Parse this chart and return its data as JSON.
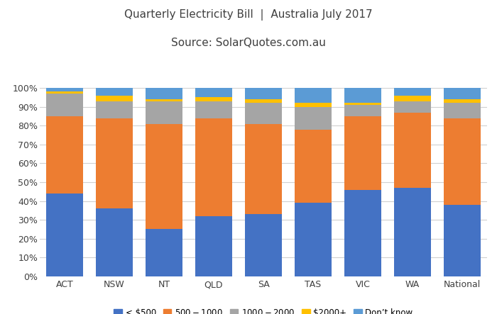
{
  "categories": [
    "ACT",
    "NSW",
    "NT",
    "QLD",
    "SA",
    "TAS",
    "VIC",
    "WA",
    "National"
  ],
  "series": {
    "lt500": [
      44,
      36,
      25,
      32,
      33,
      39,
      46,
      47,
      38
    ],
    "s500_1000": [
      41,
      48,
      56,
      52,
      48,
      39,
      39,
      40,
      46
    ],
    "s1000_2000": [
      12,
      9,
      12,
      9,
      11,
      12,
      6,
      6,
      8
    ],
    "s2000plus": [
      1,
      3,
      1,
      2,
      2,
      2,
      1,
      3,
      2
    ],
    "dont_know": [
      2,
      4,
      6,
      5,
      6,
      8,
      8,
      4,
      6
    ]
  },
  "colors": {
    "lt500": "#4472C4",
    "s500_1000": "#ED7D31",
    "s1000_2000": "#A5A5A5",
    "s2000plus": "#FFC000",
    "dont_know": "#5B9BD5"
  },
  "labels": {
    "lt500": "< $500",
    "s500_1000": "$500 - $1000",
    "s1000_2000": "$1000- $2000",
    "s2000plus": "$2000+",
    "dont_know": "Don’t know"
  },
  "title_line1": "Quarterly Electricity Bill  |  Australia July 2017",
  "title_line2": "Source: SolarQuotes.com.au",
  "background_color": "#FFFFFF",
  "bar_width": 0.75,
  "figsize": [
    7.0,
    4.43
  ],
  "dpi": 100
}
